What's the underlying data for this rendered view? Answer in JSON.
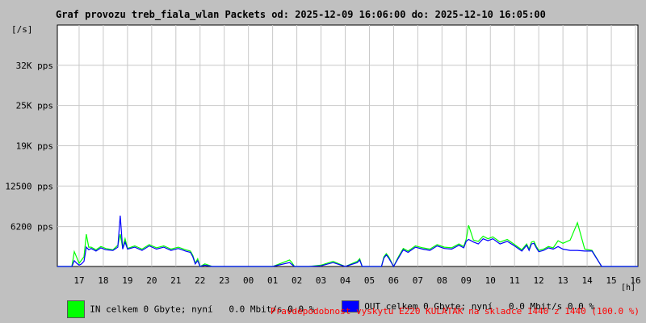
{
  "title": "Graf provozu treb_fiala_wlan Packets od: 2025-12-09 16:06:00 do: 2025-12-10 16:05:00",
  "y_unit": "[/s]",
  "x_unit": "[h]",
  "legend": {
    "in_text": "IN celkem 0 Gbyte; nyní   0.0 Mbit/s 0.0 %",
    "out_text": "OUT celkem 0 Gbyte; nyní   0.0 Mbit/s 0.0 %"
  },
  "footer": "Pravdepodobnost vyskytu E220 KULATAK na skladce 1440 z 1440 (100.0 %)",
  "colors": {
    "background": "#c0c0c0",
    "plot_bg": "#ffffff",
    "grid": "#c8c8c8",
    "in": "#00ff00",
    "out": "#0000ff",
    "footer": "#ff0000"
  },
  "chart_data": {
    "type": "line",
    "title": "Graf provozu treb_fiala_wlan Packets od: 2025-12-09 16:06:00 do: 2025-12-10 16:05:00",
    "xlabel": "[h]",
    "ylabel": "[/s]",
    "x_ticks": [
      "17",
      "18",
      "19",
      "20",
      "21",
      "22",
      "23",
      "00",
      "01",
      "02",
      "03",
      "04",
      "05",
      "06",
      "07",
      "08",
      "09",
      "10",
      "11",
      "12",
      "13",
      "14",
      "15",
      "16"
    ],
    "y_ticks": [
      {
        "value": 6200,
        "label": "6200 pps"
      },
      {
        "value": 12500,
        "label": "12500 pps"
      },
      {
        "value": 18750,
        "label": "19K pps"
      },
      {
        "value": 25000,
        "label": "25K pps"
      },
      {
        "value": 31250,
        "label": "32K pps"
      }
    ],
    "ylim": [
      0,
      37500
    ],
    "xlim": [
      16.1,
      40.1
    ],
    "grid": true,
    "series": [
      {
        "name": "IN",
        "x": [
          16.1,
          16.7,
          16.8,
          16.9,
          17.0,
          17.1,
          17.2,
          17.3,
          17.4,
          17.5,
          17.7,
          17.9,
          18.1,
          18.4,
          18.6,
          18.7,
          18.8,
          18.9,
          19.0,
          19.3,
          19.6,
          19.9,
          20.2,
          20.5,
          20.8,
          21.1,
          21.4,
          21.6,
          21.7,
          21.8,
          21.9,
          22.0,
          22.2,
          22.5,
          23.0,
          24.0,
          25.0,
          25.7,
          25.8,
          25.9,
          26.5,
          27.0,
          27.5,
          28.0,
          28.5,
          28.6,
          28.7,
          29.0,
          29.3,
          29.5,
          29.6,
          29.7,
          29.8,
          30.0,
          30.2,
          30.4,
          30.6,
          30.9,
          31.2,
          31.5,
          31.8,
          32.1,
          32.4,
          32.7,
          32.9,
          33.0,
          33.1,
          33.3,
          33.5,
          33.7,
          33.9,
          34.1,
          34.4,
          34.7,
          35.0,
          35.3,
          35.5,
          35.6,
          35.7,
          35.8,
          35.9,
          36.0,
          36.2,
          36.4,
          36.6,
          36.8,
          37.0,
          37.3,
          37.6,
          37.9,
          38.2,
          38.6,
          39.0,
          39.5,
          40.1
        ],
        "y": [
          0,
          0,
          2300,
          1400,
          500,
          1000,
          1500,
          5000,
          3000,
          3000,
          2600,
          3100,
          2800,
          2600,
          3300,
          5000,
          2900,
          4300,
          2800,
          3200,
          2700,
          3400,
          2900,
          3200,
          2700,
          3000,
          2600,
          2400,
          1700,
          500,
          1200,
          0,
          400,
          0,
          0,
          0,
          0,
          1000,
          600,
          0,
          0,
          200,
          800,
          0,
          800,
          1200,
          0,
          0,
          0,
          0,
          1500,
          2000,
          1500,
          0,
          1500,
          2800,
          2400,
          3200,
          2900,
          2700,
          3400,
          3000,
          2900,
          3500,
          3100,
          4200,
          6400,
          4100,
          3900,
          4700,
          4300,
          4600,
          3800,
          4200,
          3400,
          2600,
          3500,
          2700,
          3800,
          3900,
          3100,
          2500,
          2700,
          3100,
          2900,
          4000,
          3600,
          4100,
          6800,
          2700,
          2500,
          0,
          0,
          0,
          0
        ]
      },
      {
        "name": "OUT",
        "x": [
          16.1,
          16.7,
          16.8,
          16.9,
          17.0,
          17.1,
          17.2,
          17.3,
          17.4,
          17.5,
          17.7,
          17.9,
          18.1,
          18.4,
          18.6,
          18.7,
          18.8,
          18.9,
          19.0,
          19.3,
          19.6,
          19.9,
          20.2,
          20.5,
          20.8,
          21.1,
          21.4,
          21.6,
          21.7,
          21.8,
          21.9,
          22.0,
          22.2,
          22.5,
          23.0,
          24.0,
          25.0,
          25.7,
          25.8,
          25.9,
          26.5,
          27.0,
          27.5,
          28.0,
          28.5,
          28.6,
          28.7,
          29.0,
          29.3,
          29.5,
          29.6,
          29.7,
          29.8,
          30.0,
          30.2,
          30.4,
          30.6,
          30.9,
          31.2,
          31.5,
          31.8,
          32.1,
          32.4,
          32.7,
          32.9,
          33.0,
          33.1,
          33.3,
          33.5,
          33.7,
          33.9,
          34.1,
          34.4,
          34.7,
          35.0,
          35.3,
          35.5,
          35.6,
          35.7,
          35.8,
          35.9,
          36.0,
          36.2,
          36.4,
          36.6,
          36.8,
          37.0,
          37.3,
          37.6,
          37.9,
          38.2,
          38.6,
          39.0,
          39.5,
          40.1
        ],
        "y": [
          0,
          0,
          900,
          500,
          200,
          400,
          800,
          3000,
          2600,
          2800,
          2400,
          2900,
          2600,
          2500,
          3000,
          7900,
          2700,
          3800,
          2700,
          3000,
          2500,
          3200,
          2700,
          3000,
          2500,
          2800,
          2400,
          2200,
          1500,
          400,
          900,
          0,
          200,
          0,
          0,
          0,
          0,
          600,
          300,
          0,
          0,
          100,
          600,
          0,
          600,
          1000,
          0,
          0,
          0,
          0,
          1300,
          1800,
          1300,
          0,
          1300,
          2600,
          2200,
          3000,
          2700,
          2500,
          3200,
          2800,
          2700,
          3300,
          2900,
          3900,
          4200,
          3800,
          3500,
          4300,
          4000,
          4300,
          3500,
          3900,
          3200,
          2400,
          3300,
          2500,
          3500,
          3600,
          2900,
          2300,
          2500,
          2900,
          2700,
          3100,
          2700,
          2500,
          2500,
          2400,
          2400,
          0,
          0,
          0,
          0
        ]
      }
    ]
  }
}
